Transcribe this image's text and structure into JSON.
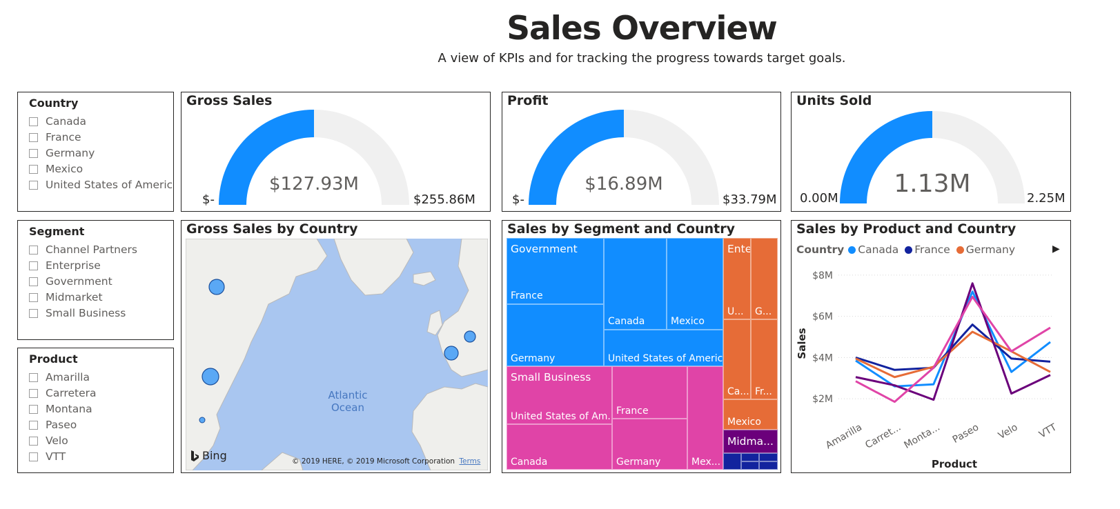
{
  "page": {
    "title": "Sales Overview",
    "subtitle": "A view of KPIs and for tracking the progress towards target goals."
  },
  "slicers": {
    "country": {
      "title": "Country",
      "items": [
        "Canada",
        "France",
        "Germany",
        "Mexico",
        "United States of America"
      ]
    },
    "segment": {
      "title": "Segment",
      "items": [
        "Channel Partners",
        "Enterprise",
        "Government",
        "Midmarket",
        "Small Business"
      ]
    },
    "product": {
      "title": "Product",
      "items": [
        "Amarilla",
        "Carretera",
        "Montana",
        "Paseo",
        "Velo",
        "VTT"
      ]
    }
  },
  "gauges": [
    {
      "title": "Gross Sales",
      "value_label": "$127.93M",
      "min_label": "$-",
      "max_label": "$255.86M",
      "fraction": 0.5
    },
    {
      "title": "Profit",
      "value_label": "$16.89M",
      "min_label": "$-",
      "max_label": "$33.79M",
      "fraction": 0.5
    },
    {
      "title": "Units Sold",
      "value_label": "1.13M",
      "min_label": "0.00M",
      "max_label": "2.25M",
      "fraction": 0.5
    }
  ],
  "map": {
    "title": "Gross Sales by Country",
    "ocean_label_1": "Atlantic",
    "ocean_label_2": "Ocean",
    "bing_label": "Bing",
    "copyright": "© 2019 HERE, © 2019 Microsoft Corporation",
    "terms_label": "Terms",
    "bubble_countries": [
      "Canada",
      "United States of America",
      "Mexico",
      "France",
      "Germany"
    ]
  },
  "treemap": {
    "title": "Sales by Segment and Country",
    "labels": {
      "government": "Government",
      "gov_france": "France",
      "gov_germany": "Germany",
      "gov_canada": "Canada",
      "gov_mexico": "Mexico",
      "gov_usa": "United States of America",
      "small_business": "Small Business",
      "sb_usa": "United States of Am...",
      "sb_canada": "Canada",
      "sb_france": "France",
      "sb_germany": "Germany",
      "sb_mexico": "Mex...",
      "enterprise": "Enterpr...",
      "ent_u": "U...",
      "ent_g": "G...",
      "ent_ca": "Ca...",
      "ent_fr": "Fr...",
      "ent_mexico": "Mexico",
      "midmarket": "Midma..."
    },
    "colors": {
      "government": "#118DFF",
      "small_business": "#E044A7",
      "enterprise": "#E66C37",
      "midmarket": "#6B007B",
      "channel": "#12239E"
    }
  },
  "line_chart": {
    "title": "Sales by Product and Country",
    "legend_title": "Country",
    "legend_more_icon": "chevron-right-icon",
    "xlabel": "Product",
    "ylabel": "Sales"
  },
  "chart_data": {
    "type": "line",
    "categories": [
      "Amarilla",
      "Carret...",
      "Monta...",
      "Paseo",
      "Velo",
      "VTT"
    ],
    "y_ticks": [
      "$2M",
      "$4M",
      "$6M",
      "$8M"
    ],
    "ylim": [
      1.2,
      8.7
    ],
    "grid": true,
    "legend": "top-left",
    "series": [
      {
        "name": "Canada",
        "color": "#118DFF",
        "values": [
          3.85,
          2.6,
          2.7,
          7.2,
          3.3,
          4.75
        ]
      },
      {
        "name": "France",
        "color": "#12239E",
        "values": [
          4.0,
          3.4,
          3.5,
          5.6,
          3.95,
          3.8
        ]
      },
      {
        "name": "Germany",
        "color": "#E66C37",
        "values": [
          3.95,
          3.05,
          3.55,
          5.25,
          4.3,
          3.3
        ]
      },
      {
        "name": "",
        "color": "#6B007B",
        "values": [
          3.05,
          2.65,
          1.95,
          7.6,
          2.25,
          3.15
        ]
      },
      {
        "name": "",
        "color": "#E044A7",
        "values": [
          2.85,
          1.85,
          3.5,
          6.95,
          4.3,
          5.45
        ]
      }
    ]
  }
}
